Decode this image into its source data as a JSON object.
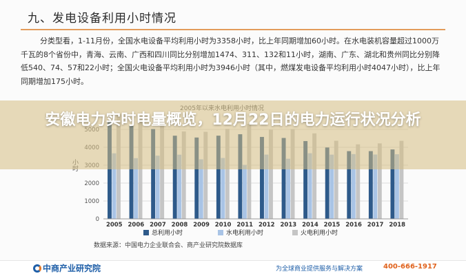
{
  "section_title": "九、发电设备利用小时情况",
  "paragraph": "分类型看，1-11月份，全国水电设备平均利用小时为3358小时，比上年同期增加60小时。在水电装机容量超过1000万千瓦的8个省份中，青海、云南、广西和四川同比分别增加1474、311、132和11小时，湖南、广东、湖北和贵州同比分别降低540、74、57和22小时；全国火电设备平均利用小时为3946小时（其中，燃煤发电设备平均利用小时4047小时），比上年同期增加175小时。",
  "overlay_title": "安徽电力实时电量概览，12月22日的电力运行状况分析",
  "source": "数据来源：中国电力企业联合会、商产业研究院数据库",
  "footer": {
    "logo_text": "中商产业研究院",
    "slogan": "为全球商业提供服务与解决方案",
    "phone": "400-666-1917"
  },
  "colors": {
    "total": "#2e5a8a",
    "hydro": "#a9c4e6",
    "thermal": "#c5c5c5",
    "accent": "#e39b5a"
  },
  "chart_data": {
    "type": "bar",
    "title": "2005年以来水电利用小时情况",
    "ylabel": "小时",
    "ylim": [
      0,
      6000
    ],
    "yticks": [
      0,
      1000,
      2000,
      3000,
      4000,
      5000
    ],
    "categories": [
      "2005",
      "2006",
      "2007",
      "2008",
      "2009",
      "2010",
      "2011",
      "2012",
      "2013",
      "2014",
      "2015",
      "2016",
      "2017",
      "2018"
    ],
    "series": [
      {
        "name": "总利用小时",
        "values": [
          5425,
          5198,
          5020,
          4648,
          4546,
          4650,
          4730,
          4579,
          4521,
          4348,
          3988,
          3785,
          3786,
          3880
        ]
      },
      {
        "name": "水电利用小时",
        "values": [
          3664,
          3393,
          3532,
          3589,
          3328,
          3404,
          3019,
          3591,
          3359,
          3669,
          3590,
          3621,
          3597,
          3613
        ]
      },
      {
        "name": "火电利用小时",
        "values": [
          5865,
          5633,
          5344,
          4885,
          4865,
          5031,
          5305,
          4982,
          5021,
          4778,
          4364,
          4165,
          4219,
          4361
        ]
      }
    ],
    "grid": true,
    "legend": "bottom"
  }
}
